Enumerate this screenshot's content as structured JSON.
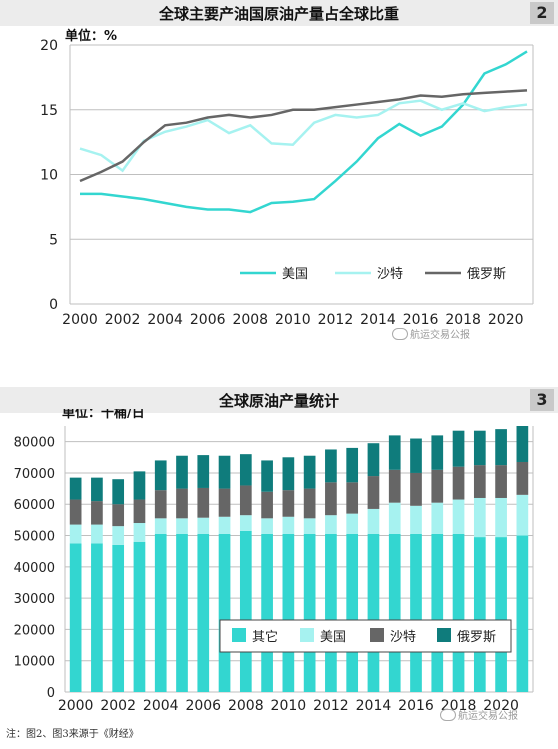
{
  "chart_data": [
    {
      "type": "line",
      "title": "全球主要产油国原油产量占全球比重",
      "badge": "2",
      "unit_label": "单位：%",
      "x": [
        2000,
        2001,
        2002,
        2003,
        2004,
        2005,
        2006,
        2007,
        2008,
        2009,
        2010,
        2011,
        2012,
        2013,
        2014,
        2015,
        2016,
        2017,
        2018,
        2019,
        2020,
        2021
      ],
      "x_ticks": [
        "2000",
        "2002",
        "2004",
        "2006",
        "2008",
        "2010",
        "2012",
        "2014",
        "2016",
        "2018",
        "2020"
      ],
      "y_ticks": [
        "0",
        "5",
        "10",
        "15",
        "20"
      ],
      "ylim": [
        0,
        20
      ],
      "grid": true,
      "legend_position": "bottom-right",
      "series": [
        {
          "name": "美国",
          "color": "#33d6d0",
          "values": [
            8.5,
            8.5,
            8.3,
            8.1,
            7.8,
            7.5,
            7.3,
            7.3,
            7.1,
            7.8,
            7.9,
            8.1,
            9.5,
            11.0,
            12.8,
            13.9,
            13.0,
            13.7,
            15.4,
            17.8,
            18.5,
            19.5
          ]
        },
        {
          "name": "沙特",
          "color": "#a6f2f0",
          "values": [
            12.0,
            11.5,
            10.3,
            12.6,
            13.3,
            13.7,
            14.2,
            13.2,
            13.8,
            12.4,
            12.3,
            14.0,
            14.6,
            14.4,
            14.6,
            15.5,
            15.7,
            15.0,
            15.5,
            14.9,
            15.2,
            15.4
          ]
        },
        {
          "name": "俄罗斯",
          "color": "#666666",
          "values": [
            9.5,
            10.2,
            11.0,
            12.5,
            13.8,
            14.0,
            14.4,
            14.6,
            14.4,
            14.6,
            15.0,
            15.0,
            15.2,
            15.4,
            15.6,
            15.8,
            16.1,
            16.0,
            16.2,
            16.3,
            16.4,
            16.5
          ]
        }
      ]
    },
    {
      "type": "bar",
      "stacked": true,
      "title": "全球原油产量统计",
      "badge": "3",
      "unit_label": "单位：千桶/日",
      "categories": [
        2000,
        2001,
        2002,
        2003,
        2004,
        2005,
        2006,
        2007,
        2008,
        2009,
        2010,
        2011,
        2012,
        2013,
        2014,
        2015,
        2016,
        2017,
        2018,
        2019,
        2020,
        2021
      ],
      "x_ticks": [
        "2000",
        "2002",
        "2004",
        "2006",
        "2008",
        "2010",
        "2012",
        "2014",
        "2016",
        "2018",
        "2020"
      ],
      "y_ticks": [
        "0",
        "10000",
        "20000",
        "30000",
        "40000",
        "50000",
        "60000",
        "70000",
        "80000"
      ],
      "ylim": [
        0,
        85000
      ],
      "grid": true,
      "legend_position": "bottom-center",
      "series": [
        {
          "name": "其它",
          "color": "#33d6d0",
          "values": [
            47500,
            47500,
            47000,
            48000,
            50500,
            50500,
            50500,
            50500,
            51500,
            50500,
            50500,
            50500,
            50500,
            50500,
            50500,
            50500,
            50500,
            50500,
            50500,
            49500,
            49500,
            50000
          ]
        },
        {
          "name": "美国",
          "color": "#a6f2f0",
          "values": [
            6000,
            6000,
            6000,
            6000,
            5000,
            5000,
            5200,
            5500,
            5000,
            5000,
            5500,
            5000,
            6000,
            6500,
            8000,
            10000,
            9000,
            10000,
            11000,
            12500,
            12500,
            13000
          ]
        },
        {
          "name": "沙特",
          "color": "#666666",
          "values": [
            8000,
            7500,
            7000,
            7500,
            9000,
            9500,
            9500,
            9000,
            9500,
            8500,
            8500,
            9500,
            10500,
            10000,
            10500,
            10500,
            10500,
            10500,
            10500,
            10500,
            10500,
            10500
          ]
        },
        {
          "name": "俄罗斯",
          "color": "#0f7c7c",
          "values": [
            7000,
            7500,
            8000,
            9000,
            9500,
            10500,
            10500,
            10500,
            10000,
            10000,
            10500,
            10500,
            10500,
            11000,
            10500,
            11000,
            11000,
            11000,
            11500,
            11000,
            11500,
            11500
          ]
        }
      ]
    }
  ],
  "watermark": "航运交易公报",
  "footnote": "注：图2、图3来源于《财经》"
}
